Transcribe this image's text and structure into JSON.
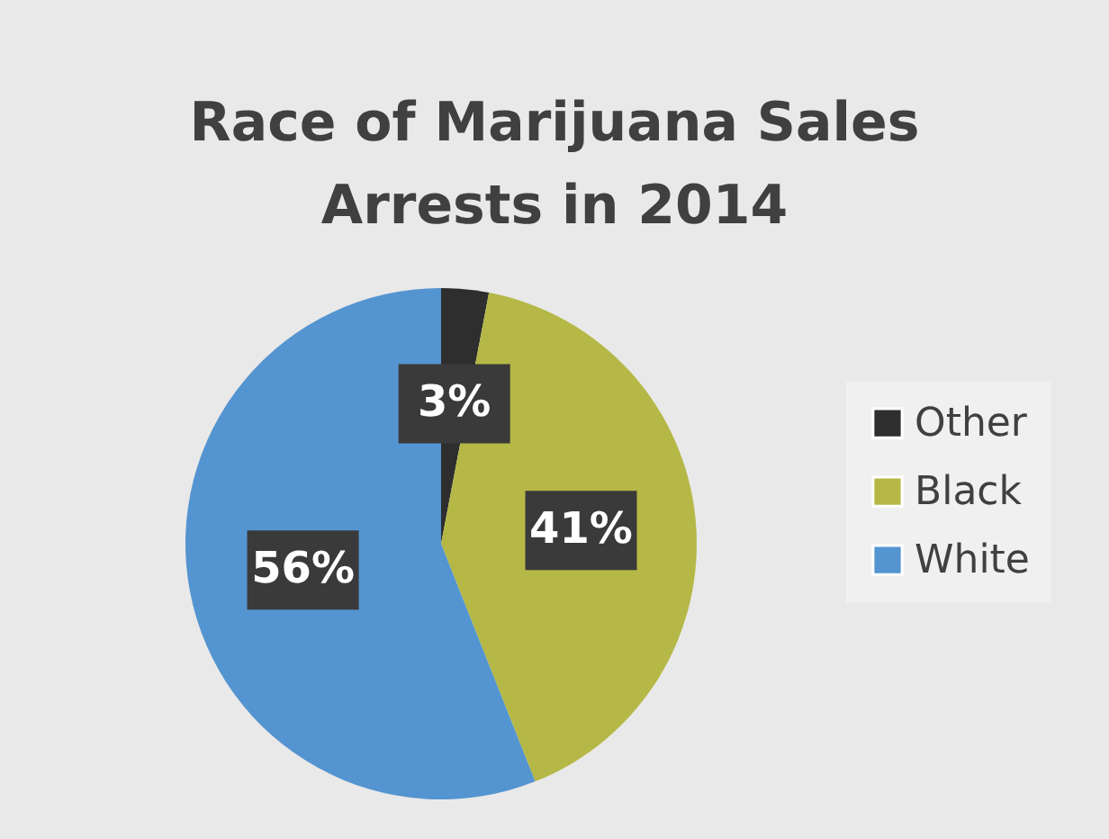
{
  "chart_data": {
    "type": "pie",
    "title": "Race of Marijuana Sales\nArrests in 2014",
    "categories": [
      "Other",
      "Black",
      "White"
    ],
    "values": [
      3,
      41,
      56
    ],
    "colors": [
      "#2e2e2e",
      "#b5b846",
      "#5494d0"
    ],
    "value_labels": [
      "3%",
      "41%",
      "56%"
    ],
    "legend": "right"
  }
}
